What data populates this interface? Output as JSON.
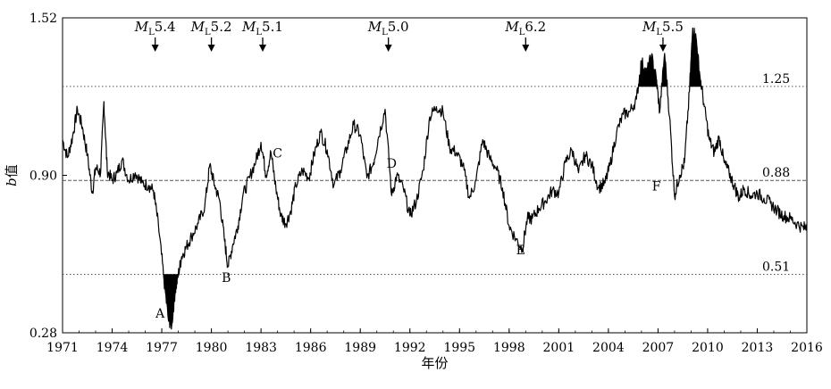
{
  "chart_data": {
    "type": "line",
    "xlabel": "年份",
    "ylabel_italic": "b",
    "ylabel_rest": "值",
    "xlim": [
      1971,
      2016
    ],
    "ylim": [
      0.28,
      1.52
    ],
    "xticks": [
      "1971",
      "1974",
      "1977",
      "1980",
      "1983",
      "1986",
      "1989",
      "1992",
      "1995",
      "1998",
      "2001",
      "2004",
      "2007",
      "2010",
      "2013",
      "2016"
    ],
    "yticks": [
      "0.28",
      "0.90",
      "1.52"
    ],
    "reference_lines": [
      {
        "value": 1.25,
        "label": "1.25",
        "style": "dotted"
      },
      {
        "value": 0.88,
        "label": "0.88",
        "style": "dashed"
      },
      {
        "value": 0.51,
        "label": "0.51",
        "style": "dotted"
      }
    ],
    "earthquakes": [
      {
        "year": 1976.6,
        "mag_prefix": "M",
        "mag_sub": "L",
        "mag_value": "5.4"
      },
      {
        "year": 1980.0,
        "mag_prefix": "M",
        "mag_sub": "L",
        "mag_value": "5.2"
      },
      {
        "year": 1983.1,
        "mag_prefix": "M",
        "mag_sub": "L",
        "mag_value": "5.1"
      },
      {
        "year": 1990.7,
        "mag_prefix": "M",
        "mag_sub": "L",
        "mag_value": "5.0"
      },
      {
        "year": 1999.0,
        "mag_prefix": "M",
        "mag_sub": "L",
        "mag_value": "6.2"
      },
      {
        "year": 2007.3,
        "mag_prefix": "M",
        "mag_sub": "L",
        "mag_value": "5.5"
      }
    ],
    "point_labels": [
      {
        "label": "A",
        "x": 1976.9,
        "y": 0.34
      },
      {
        "label": "B",
        "x": 1980.9,
        "y": 0.48
      },
      {
        "label": "C",
        "x": 1984.0,
        "y": 0.97
      },
      {
        "label": "D",
        "x": 1990.9,
        "y": 0.93
      },
      {
        "label": "E",
        "x": 1998.7,
        "y": 0.59
      },
      {
        "label": "F",
        "x": 2006.9,
        "y": 0.84
      }
    ],
    "series": [
      {
        "x": [
          1971,
          1971.3,
          1971.6,
          1971.9,
          1972.2,
          1972.5,
          1972.8,
          1973.0,
          1973.3,
          1973.5,
          1973.7,
          1974.0,
          1974.3,
          1974.6,
          1975.0,
          1975.4,
          1975.8,
          1976.2,
          1976.5,
          1976.8,
          1977.1,
          1977.4,
          1977.6,
          1977.8,
          1978.0,
          1978.2,
          1978.5,
          1978.8,
          1979.2,
          1979.6,
          1979.9,
          1980.2,
          1980.5,
          1980.8,
          1981.0,
          1981.3,
          1981.6,
          1981.9,
          1982.3,
          1982.7,
          1983.0,
          1983.3,
          1983.6,
          1983.9,
          1984.2,
          1984.5,
          1984.8,
          1985.1,
          1985.5,
          1985.9,
          1986.2,
          1986.6,
          1987.0,
          1987.4,
          1987.8,
          1988.2,
          1988.6,
          1989.0,
          1989.4,
          1989.8,
          1990.1,
          1990.5,
          1990.9,
          1991.2,
          1991.6,
          1992.0,
          1992.4,
          1992.8,
          1993.2,
          1993.6,
          1994.0,
          1994.4,
          1994.8,
          1995.2,
          1995.6,
          1996.0,
          1996.4,
          1996.8,
          1997.2,
          1997.6,
          1998.0,
          1998.4,
          1998.8,
          1999.1,
          1999.4,
          1999.8,
          2000.2,
          2000.6,
          2001.0,
          2001.4,
          2001.8,
          2002.2,
          2002.6,
          2003.0,
          2003.4,
          2003.8,
          2004.1,
          2004.5,
          2004.9,
          2005.3,
          2005.7,
          2006.0,
          2006.3,
          2006.6,
          2006.9,
          2007.1,
          2007.4,
          2007.7,
          2008.0,
          2008.3,
          2008.6,
          2008.9,
          2009.1,
          2009.3,
          2009.5,
          2009.8,
          2010.1,
          2010.4,
          2010.7,
          2011.0,
          2011.3,
          2011.6,
          2011.9,
          2012.2,
          2012.6,
          2013.0,
          2013.4,
          2013.8,
          2014.2,
          2014.6,
          2015.0,
          2015.4,
          2015.8,
          2016.0
        ],
        "y": [
          1.04,
          0.97,
          1.05,
          1.16,
          1.09,
          0.98,
          0.83,
          0.93,
          0.91,
          1.19,
          0.92,
          0.88,
          0.91,
          0.96,
          0.88,
          0.91,
          0.87,
          0.86,
          0.84,
          0.7,
          0.51,
          0.33,
          0.31,
          0.44,
          0.51,
          0.58,
          0.62,
          0.66,
          0.71,
          0.78,
          0.94,
          0.86,
          0.8,
          0.64,
          0.54,
          0.63,
          0.7,
          0.82,
          0.89,
          0.96,
          1.03,
          0.9,
          0.99,
          0.85,
          0.74,
          0.71,
          0.76,
          0.86,
          0.92,
          0.89,
          0.98,
          1.07,
          1.0,
          0.86,
          0.92,
          1.01,
          1.1,
          1.06,
          0.89,
          0.95,
          1.05,
          1.16,
          0.82,
          0.9,
          0.85,
          0.74,
          0.8,
          0.92,
          1.13,
          1.17,
          1.15,
          1.01,
          0.99,
          0.94,
          0.81,
          0.88,
          1.04,
          0.97,
          0.93,
          0.85,
          0.7,
          0.65,
          0.61,
          0.73,
          0.73,
          0.77,
          0.8,
          0.84,
          0.83,
          0.95,
          1.0,
          0.91,
          0.98,
          0.94,
          0.85,
          0.87,
          0.94,
          1.07,
          1.14,
          1.15,
          1.2,
          1.35,
          1.3,
          1.37,
          1.28,
          1.15,
          1.38,
          1.13,
          0.82,
          0.9,
          0.95,
          1.23,
          1.48,
          1.44,
          1.31,
          1.17,
          1.04,
          0.99,
          1.05,
          0.95,
          0.91,
          0.86,
          0.81,
          0.85,
          0.82,
          0.83,
          0.81,
          0.79,
          0.76,
          0.74,
          0.73,
          0.71,
          0.69,
          0.71
        ]
      }
    ]
  }
}
